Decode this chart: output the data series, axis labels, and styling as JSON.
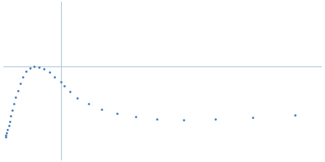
{
  "dot_color": "#3570b0",
  "dot_size": 3.5,
  "background_color": "#ffffff",
  "axis_color": "#a8c8e0",
  "axis_linewidth": 0.7,
  "x_data": [
    0.004,
    0.005,
    0.006,
    0.008,
    0.01,
    0.012,
    0.014,
    0.017,
    0.02,
    0.023,
    0.027,
    0.032,
    0.037,
    0.043,
    0.05,
    0.058,
    0.067,
    0.077,
    0.087,
    0.097,
    0.108,
    0.115,
    0.125,
    0.14,
    0.16,
    0.185,
    0.215,
    0.25,
    0.29,
    0.34,
    0.4,
    0.47,
    0.55
  ],
  "y_data": [
    0.02,
    0.028,
    0.038,
    0.052,
    0.068,
    0.088,
    0.11,
    0.135,
    0.162,
    0.19,
    0.22,
    0.25,
    0.278,
    0.3,
    0.316,
    0.322,
    0.32,
    0.312,
    0.297,
    0.278,
    0.258,
    0.24,
    0.215,
    0.188,
    0.162,
    0.14,
    0.122,
    0.108,
    0.098,
    0.093,
    0.096,
    0.104,
    0.114
  ],
  "vline_x": 0.108,
  "hline_y": 0.322,
  "xlim": [
    0.0,
    0.6
  ],
  "ylim": [
    -0.08,
    0.6
  ]
}
